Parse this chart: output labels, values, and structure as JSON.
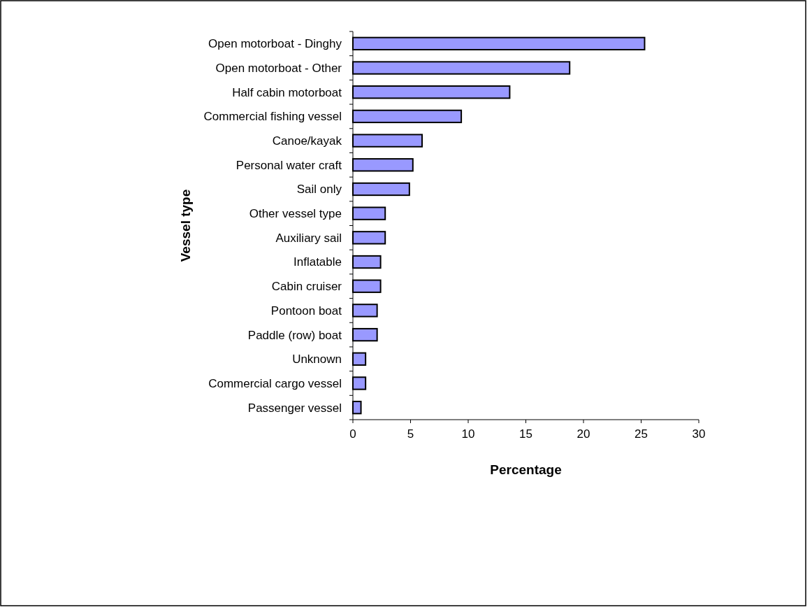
{
  "chart_data": {
    "type": "bar",
    "orientation": "horizontal",
    "xlabel": "Percentage",
    "ylabel": "Vessel type",
    "categories": [
      "Open motorboat - Dinghy",
      "Open motorboat - Other",
      "Half cabin motorboat",
      "Commercial fishing vessel",
      "Canoe/kayak",
      "Personal water craft",
      "Sail only",
      "Other vessel type",
      "Auxiliary sail",
      "Inflatable",
      "Cabin cruiser",
      "Pontoon boat",
      "Paddle (row) boat",
      "Unknown",
      "Commercial cargo vessel",
      "Passenger vessel"
    ],
    "values": [
      25.3,
      18.8,
      13.6,
      9.4,
      6.0,
      5.2,
      4.9,
      2.8,
      2.8,
      2.4,
      2.4,
      2.1,
      2.1,
      1.1,
      1.1,
      0.7
    ],
    "color": "#9999ff",
    "xlim": [
      0,
      30
    ],
    "xticks": [
      0,
      5,
      10,
      15,
      20,
      25,
      30
    ],
    "grid": false
  }
}
